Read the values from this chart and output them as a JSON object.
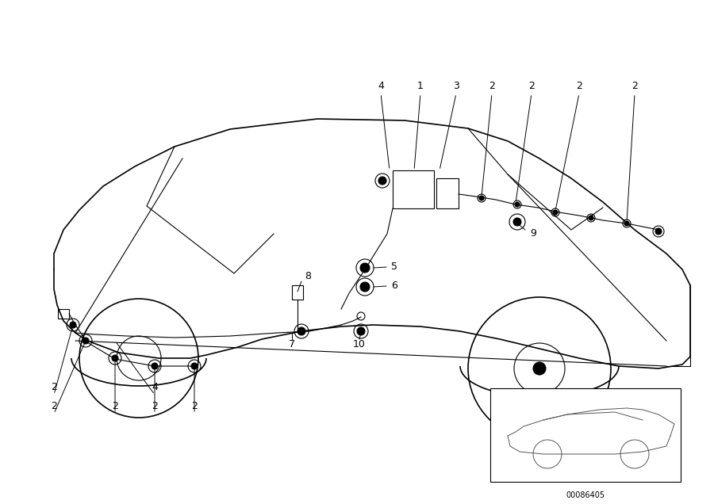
{
  "bg_color": "#ffffff",
  "line_color": "#000000",
  "fig_width": 9.0,
  "fig_height": 6.36,
  "diagram_id": "00086405",
  "car_lw": 1.2,
  "detail_lw": 0.8,
  "label_fontsize": 9
}
